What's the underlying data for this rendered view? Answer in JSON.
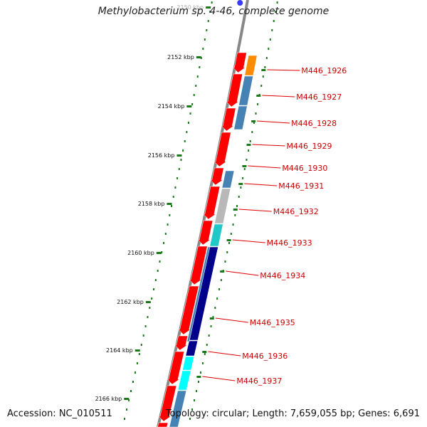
{
  "title": "Methylobacterium sp. 4-46, complete genome",
  "accession": "Accession: NC_010511",
  "topology": "Topology: circular; Length: 7,659,055 bp; Genes: 6,691",
  "colors": {
    "backbone": "#888888",
    "tick": "#1a7a1a",
    "label_line": "#dd0000",
    "label_text": "#cc0000",
    "forward": "#ff0000",
    "orange": "#ff8c00",
    "steelblue": "#4682b4",
    "gray": "#b8b8b8",
    "turquoise": "#20c8c8",
    "navy": "#00008b",
    "cyan": "#00ffff",
    "blue_marker": "#3a3aff"
  },
  "kbp_labels": [
    "2150 kbp",
    "2152 kbp",
    "2154 kbp",
    "2156 kbp",
    "2158 kbp",
    "2160 kbp",
    "2162 kbp",
    "2164 kbp",
    "2166 kbp"
  ],
  "gene_labels": [
    "M446_1926",
    "M446_1927",
    "M446_1928",
    "M446_1929",
    "M446_1930",
    "M446_1931",
    "M446_1932",
    "M446_1933",
    "M446_1934",
    "M446_1935",
    "M446_1936",
    "M446_1937"
  ]
}
